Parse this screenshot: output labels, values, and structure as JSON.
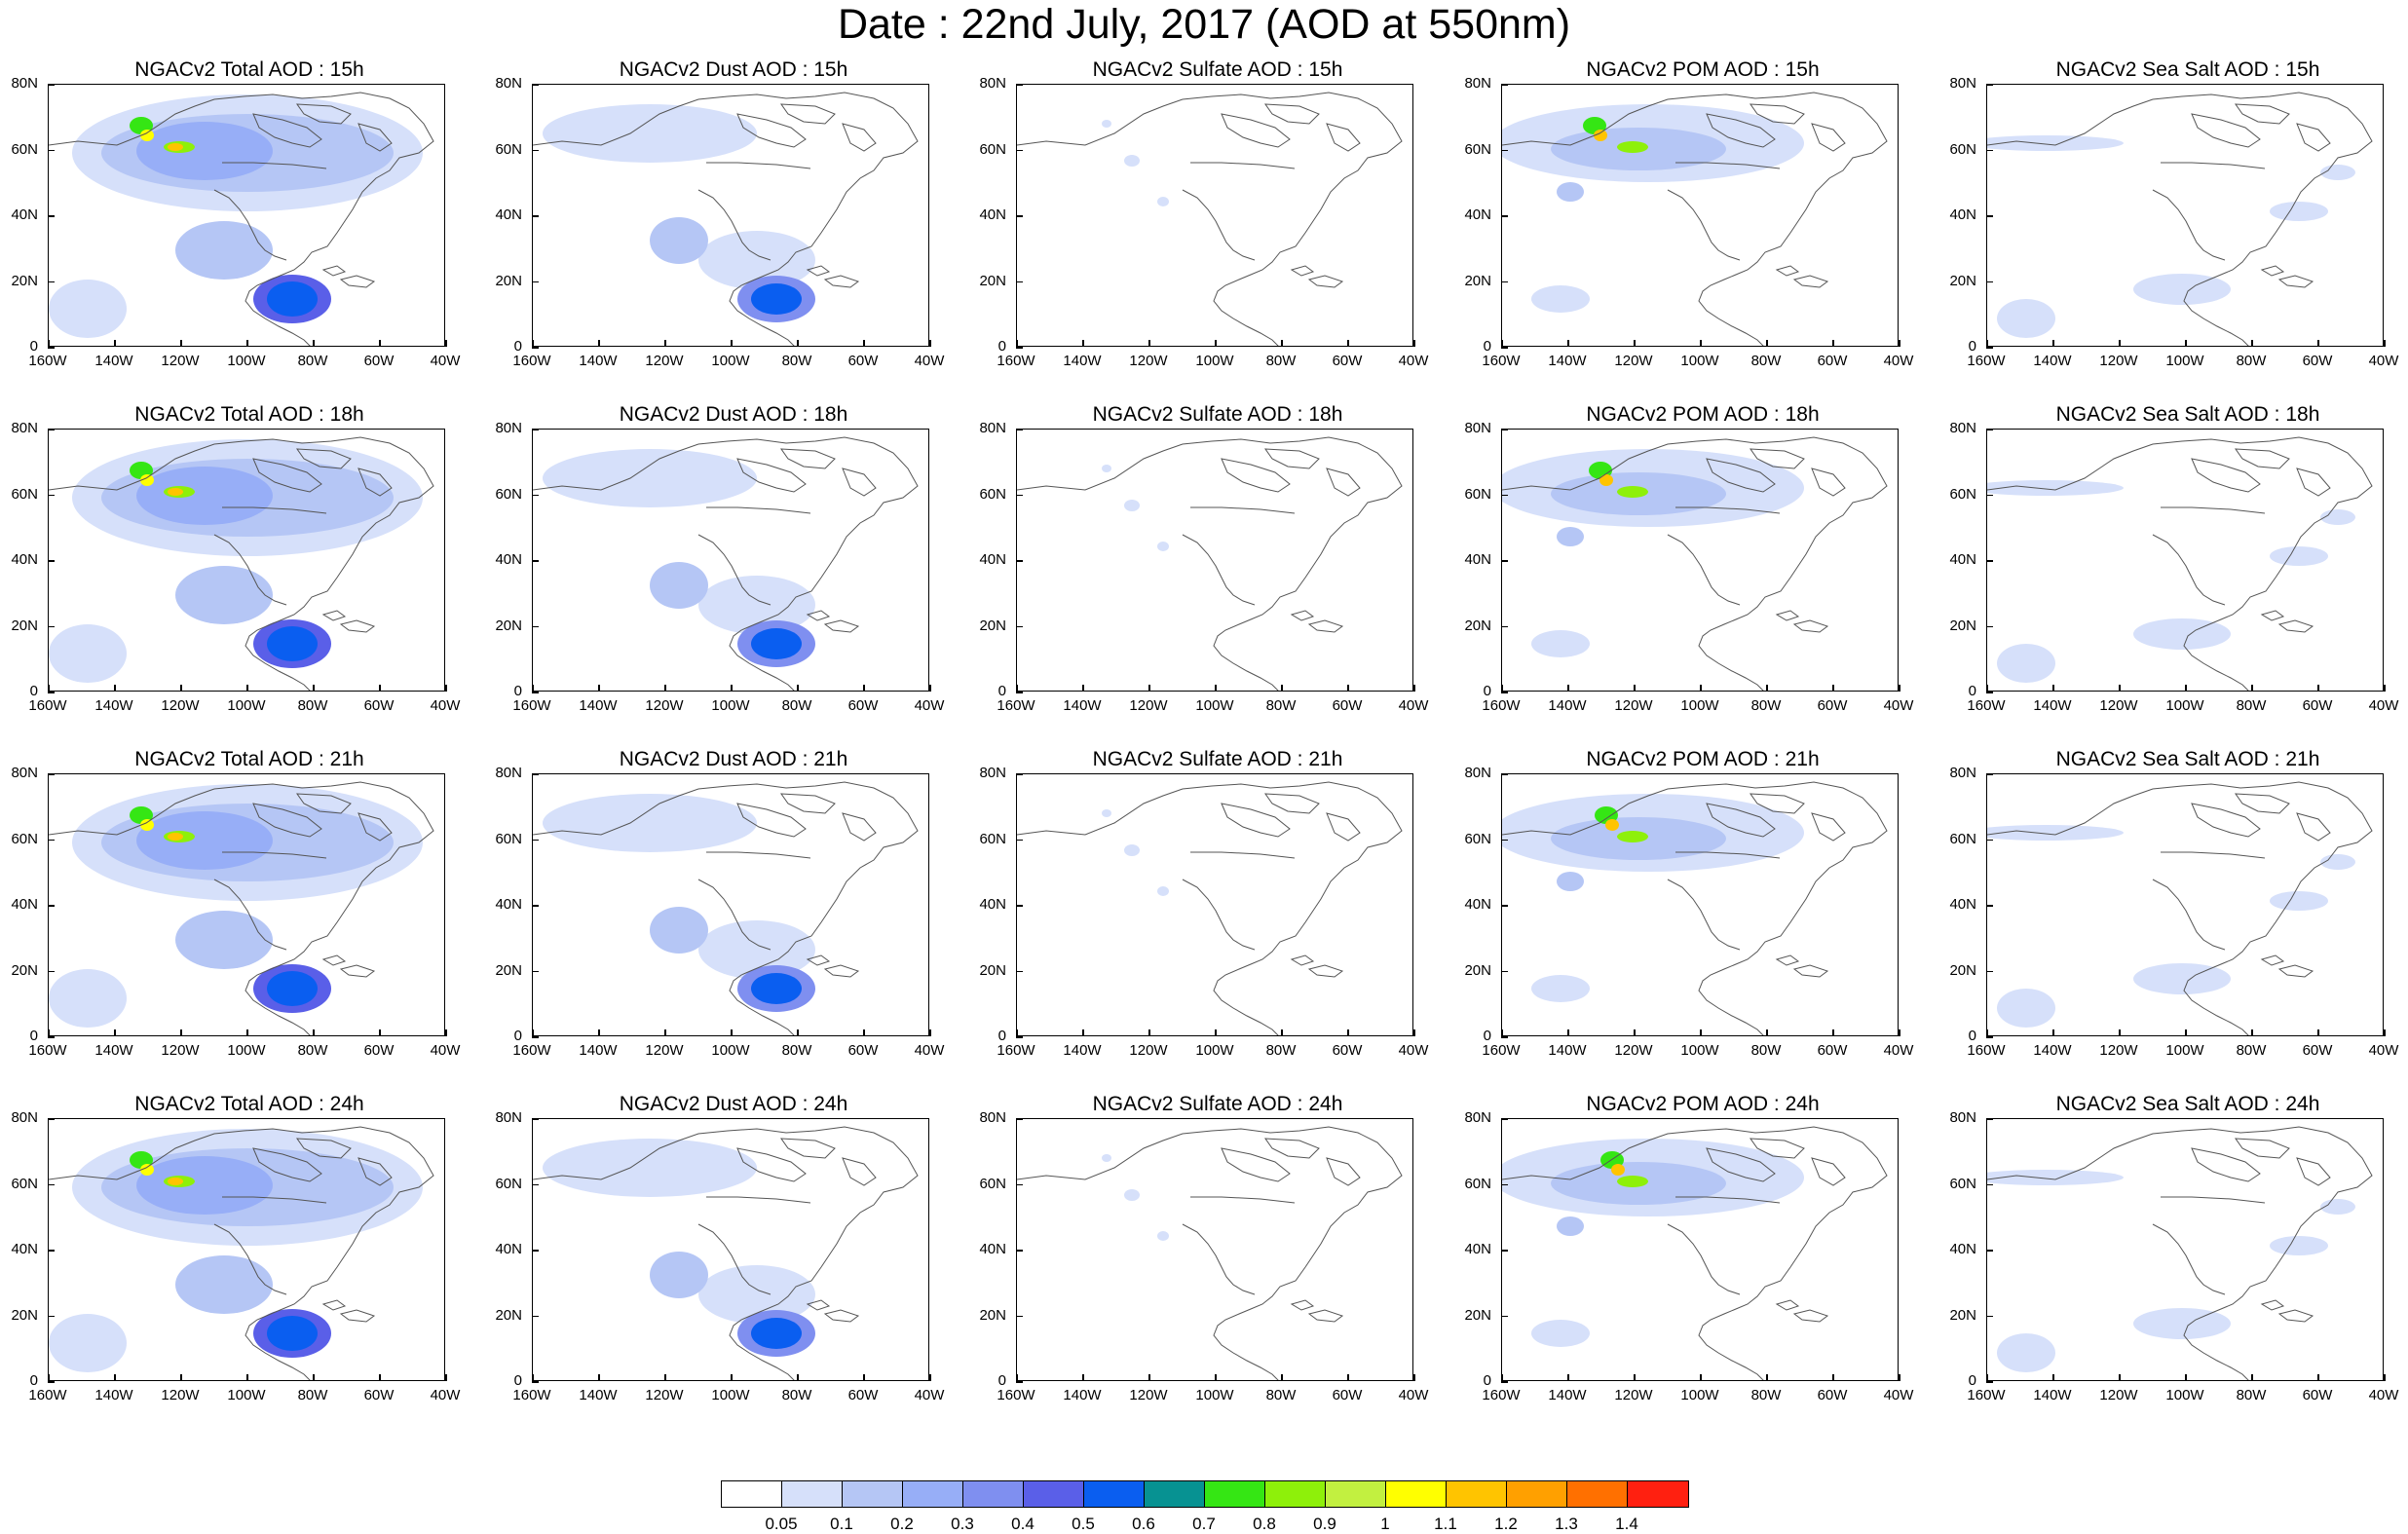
{
  "title": "Date : 22nd July, 2017 (AOD at 550nm)",
  "panel_titles": [
    [
      "NGACv2 Total AOD : 15h",
      "NGACv2 Dust AOD : 15h",
      "NGACv2 Sulfate AOD : 15h",
      "NGACv2 POM AOD : 15h",
      "NGACv2 Sea Salt AOD : 15h"
    ],
    [
      "NGACv2 Total AOD : 18h",
      "NGACv2 Dust AOD : 18h",
      "NGACv2 Sulfate AOD : 18h",
      "NGACv2 POM AOD : 18h",
      "NGACv2 Sea Salt AOD : 18h"
    ],
    [
      "NGACv2 Total AOD : 21h",
      "NGACv2 Dust AOD : 21h",
      "NGACv2 Sulfate AOD : 21h",
      "NGACv2 POM AOD : 21h",
      "NGACv2 Sea Salt AOD : 21h"
    ],
    [
      "NGACv2 Total AOD : 24h",
      "NGACv2 Dust AOD : 24h",
      "NGACv2 Sulfate AOD : 24h",
      "NGACv2 POM AOD : 24h",
      "NGACv2 Sea Salt  AOD : 24h"
    ]
  ],
  "y_ticks": [
    "80N",
    "60N",
    "40N",
    "20N",
    "0"
  ],
  "x_ticks": [
    "160W",
    "140W",
    "120W",
    "100W",
    "80W",
    "60W",
    "40W"
  ],
  "colorbar": {
    "colors": [
      "#ffffff",
      "#d6e0fa",
      "#b5c6f5",
      "#97aef7",
      "#7f8ff0",
      "#5a5fe8",
      "#0a5ef0",
      "#079292",
      "#35e614",
      "#8ef00a",
      "#c2f040",
      "#ffff00",
      "#ffc400",
      "#ffa000",
      "#ff7000",
      "#ff2010"
    ],
    "labels": [
      "0.05",
      "0.1",
      "0.2",
      "0.3",
      "0.4",
      "0.5",
      "0.6",
      "0.7",
      "0.8",
      "0.9",
      "1",
      "1.1",
      "1.2",
      "1.3",
      "1.4"
    ]
  }
}
